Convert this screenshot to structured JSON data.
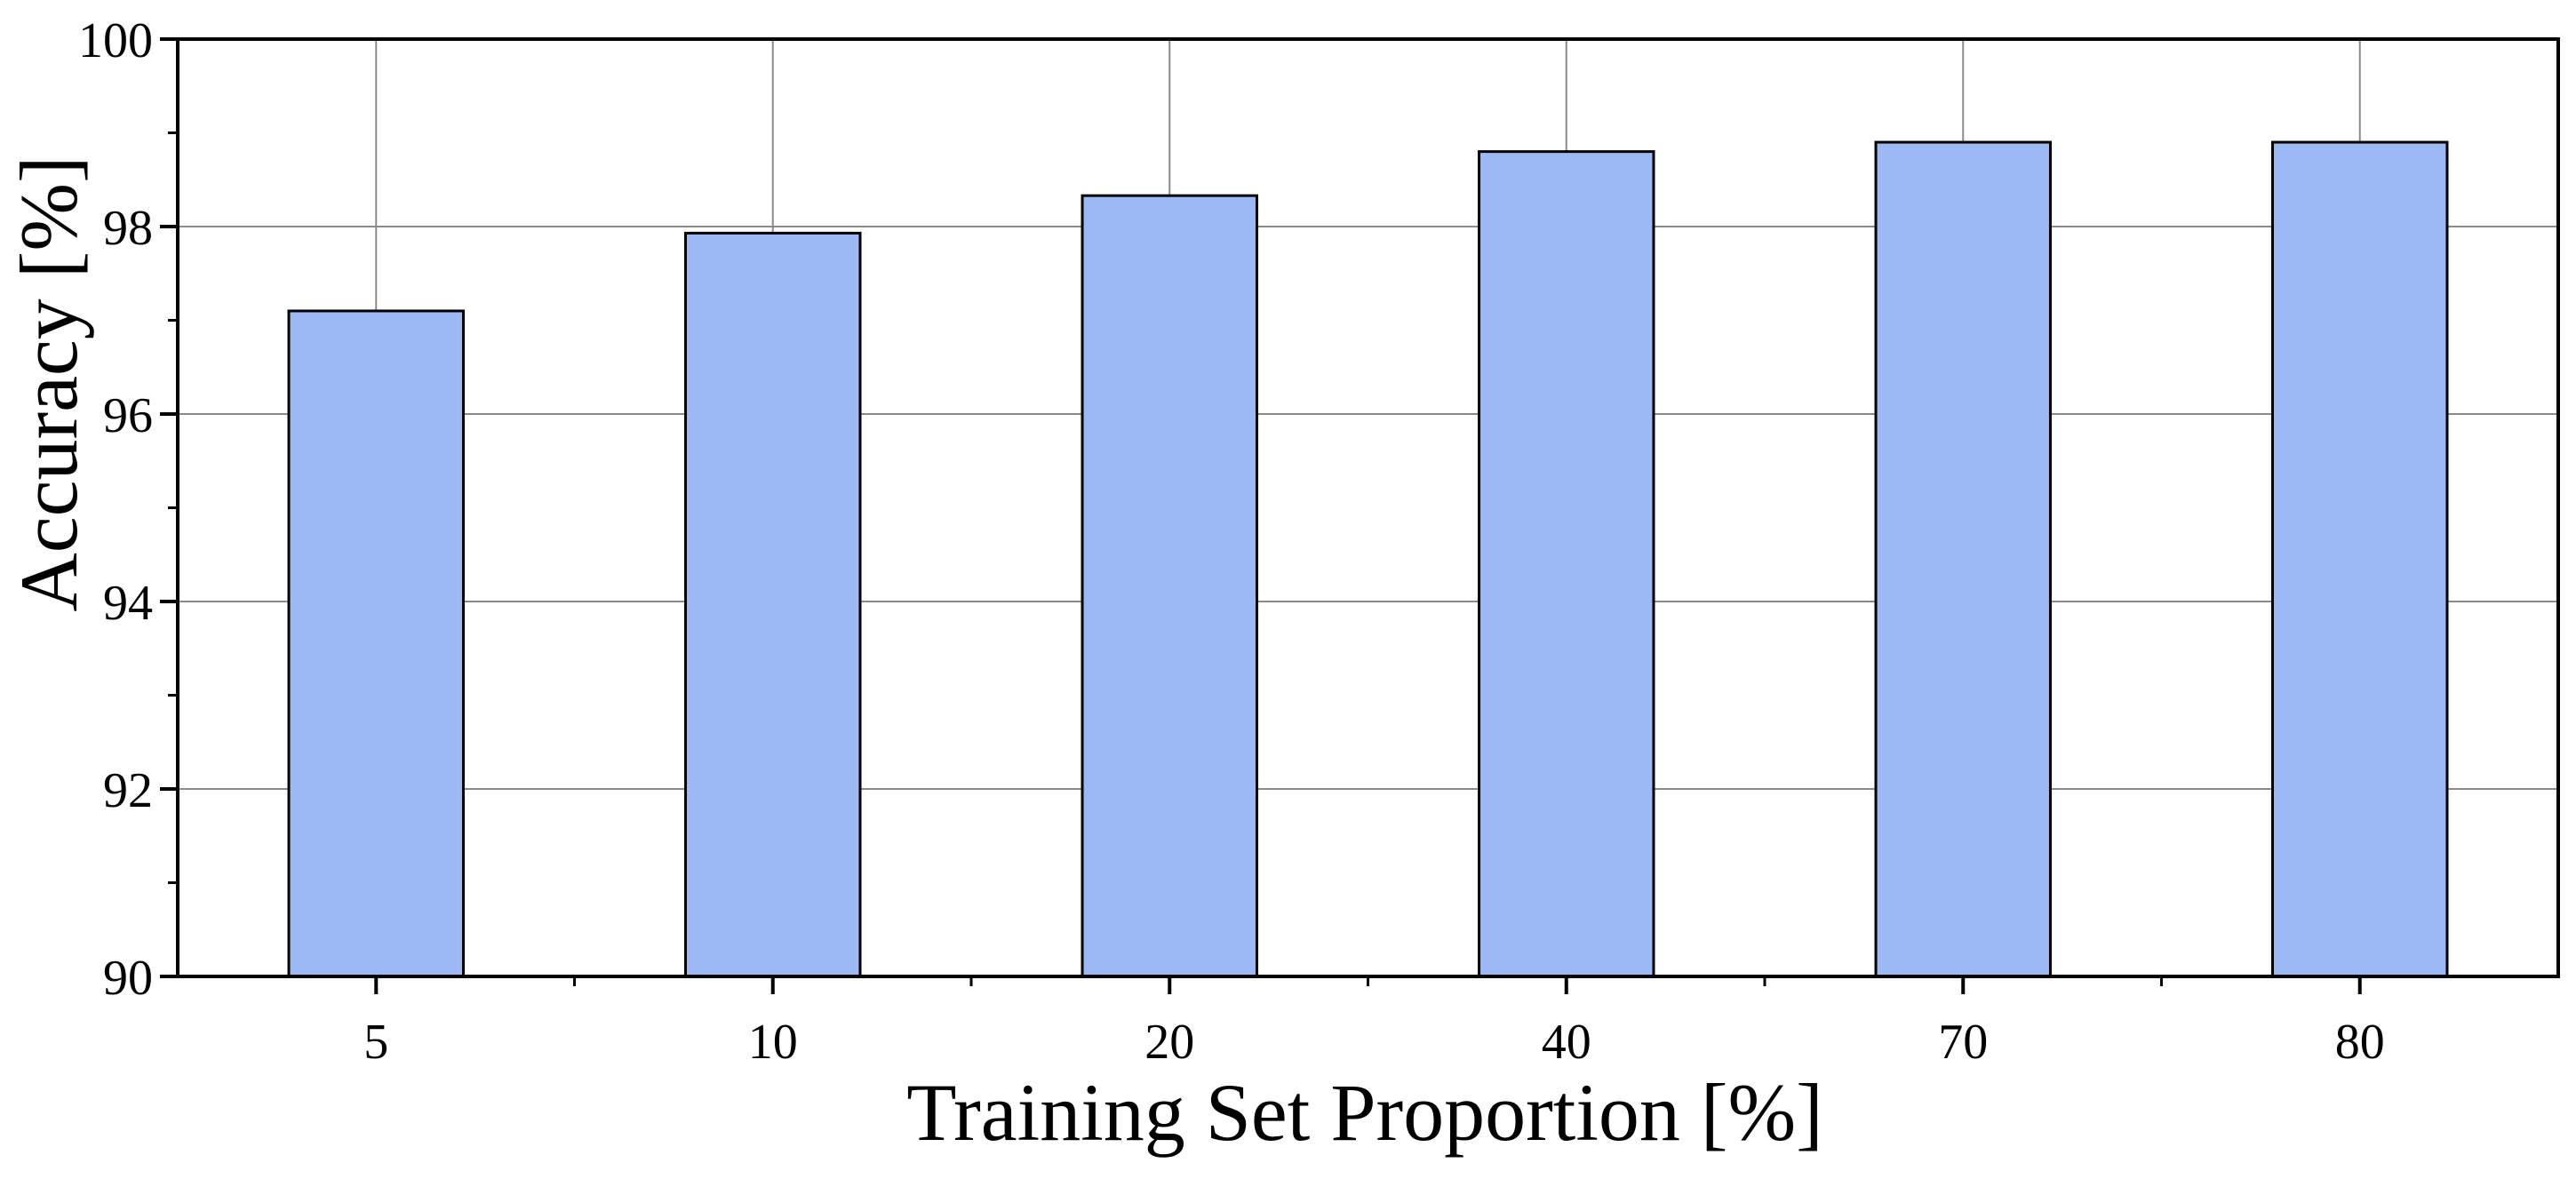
{
  "chart_data": {
    "type": "bar",
    "xlabel": "Training Set Proportion  [%]",
    "ylabel": "Accuracy  [%]",
    "categories": [
      "5",
      "10",
      "20",
      "40",
      "70",
      "80"
    ],
    "series": [
      {
        "values": [
          97.1,
          97.93,
          98.33,
          98.8,
          98.9,
          98.9
        ]
      }
    ],
    "ylim": [
      90,
      100
    ],
    "yticks": [
      "90",
      "92",
      "94",
      "96",
      "98",
      "100"
    ],
    "grid": true,
    "legend": "none",
    "bar_color": "#9db9f3",
    "bar_edge_color": "#000000",
    "grid_color": "#8a8a8a"
  }
}
